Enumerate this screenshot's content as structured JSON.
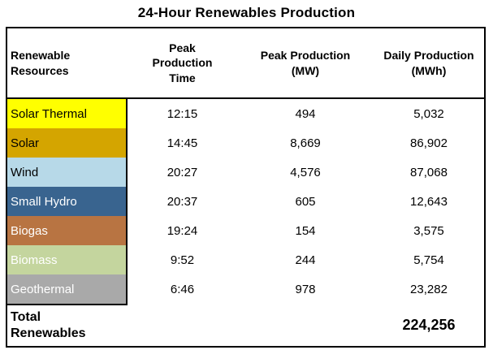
{
  "title": "24-Hour Renewables Production",
  "table": {
    "header": {
      "resource": "Renewable Resources",
      "time": "Peak Production Time",
      "peak": "Peak Production (MW)",
      "daily": "Daily Production (MWh)"
    },
    "rows": [
      {
        "resource": "Solar Thermal",
        "time": "12:15",
        "peak": "494",
        "daily": "5,032",
        "swatch": "#FFFF00",
        "text": "#000000"
      },
      {
        "resource": "Solar",
        "time": "14:45",
        "peak": "8,669",
        "daily": "86,902",
        "swatch": "#D4A500",
        "text": "#000000"
      },
      {
        "resource": "Wind",
        "time": "20:27",
        "peak": "4,576",
        "daily": "87,068",
        "swatch": "#B7D9E8",
        "text": "#000000"
      },
      {
        "resource": "Small Hydro",
        "time": "20:37",
        "peak": "605",
        "daily": "12,643",
        "swatch": "#39648F",
        "text": "#FFFFFF"
      },
      {
        "resource": "Biogas",
        "time": "19:24",
        "peak": "154",
        "daily": "3,575",
        "swatch": "#B87442",
        "text": "#FFFFFF"
      },
      {
        "resource": "Biomass",
        "time": "9:52",
        "peak": "244",
        "daily": "5,754",
        "swatch": "#C4D59E",
        "text": "#FFFFFF"
      },
      {
        "resource": "Geothermal",
        "time": "6:46",
        "peak": "978",
        "daily": "23,282",
        "swatch": "#A9A9A9",
        "text": "#FFFFFF"
      }
    ],
    "total": {
      "label": "Total Renewables",
      "daily": "224,256"
    }
  },
  "chart_data": {
    "type": "table",
    "title": "24-Hour Renewables Production",
    "columns": [
      "Renewable Resources",
      "Peak Production Time",
      "Peak Production (MW)",
      "Daily Production (MWh)"
    ],
    "rows": [
      [
        "Solar Thermal",
        "12:15",
        494,
        5032
      ],
      [
        "Solar",
        "14:45",
        8669,
        86902
      ],
      [
        "Wind",
        "20:27",
        4576,
        87068
      ],
      [
        "Small Hydro",
        "20:37",
        605,
        12643
      ],
      [
        "Biogas",
        "19:24",
        154,
        3575
      ],
      [
        "Biomass",
        "9:52",
        244,
        5754
      ],
      [
        "Geothermal",
        "6:46",
        978,
        23282
      ]
    ],
    "total_row": {
      "label": "Total Renewables",
      "daily_production_mwh": 224256
    },
    "row_colors": [
      "#FFFF00",
      "#D4A500",
      "#B7D9E8",
      "#39648F",
      "#B87442",
      "#C4D59E",
      "#A9A9A9"
    ]
  }
}
